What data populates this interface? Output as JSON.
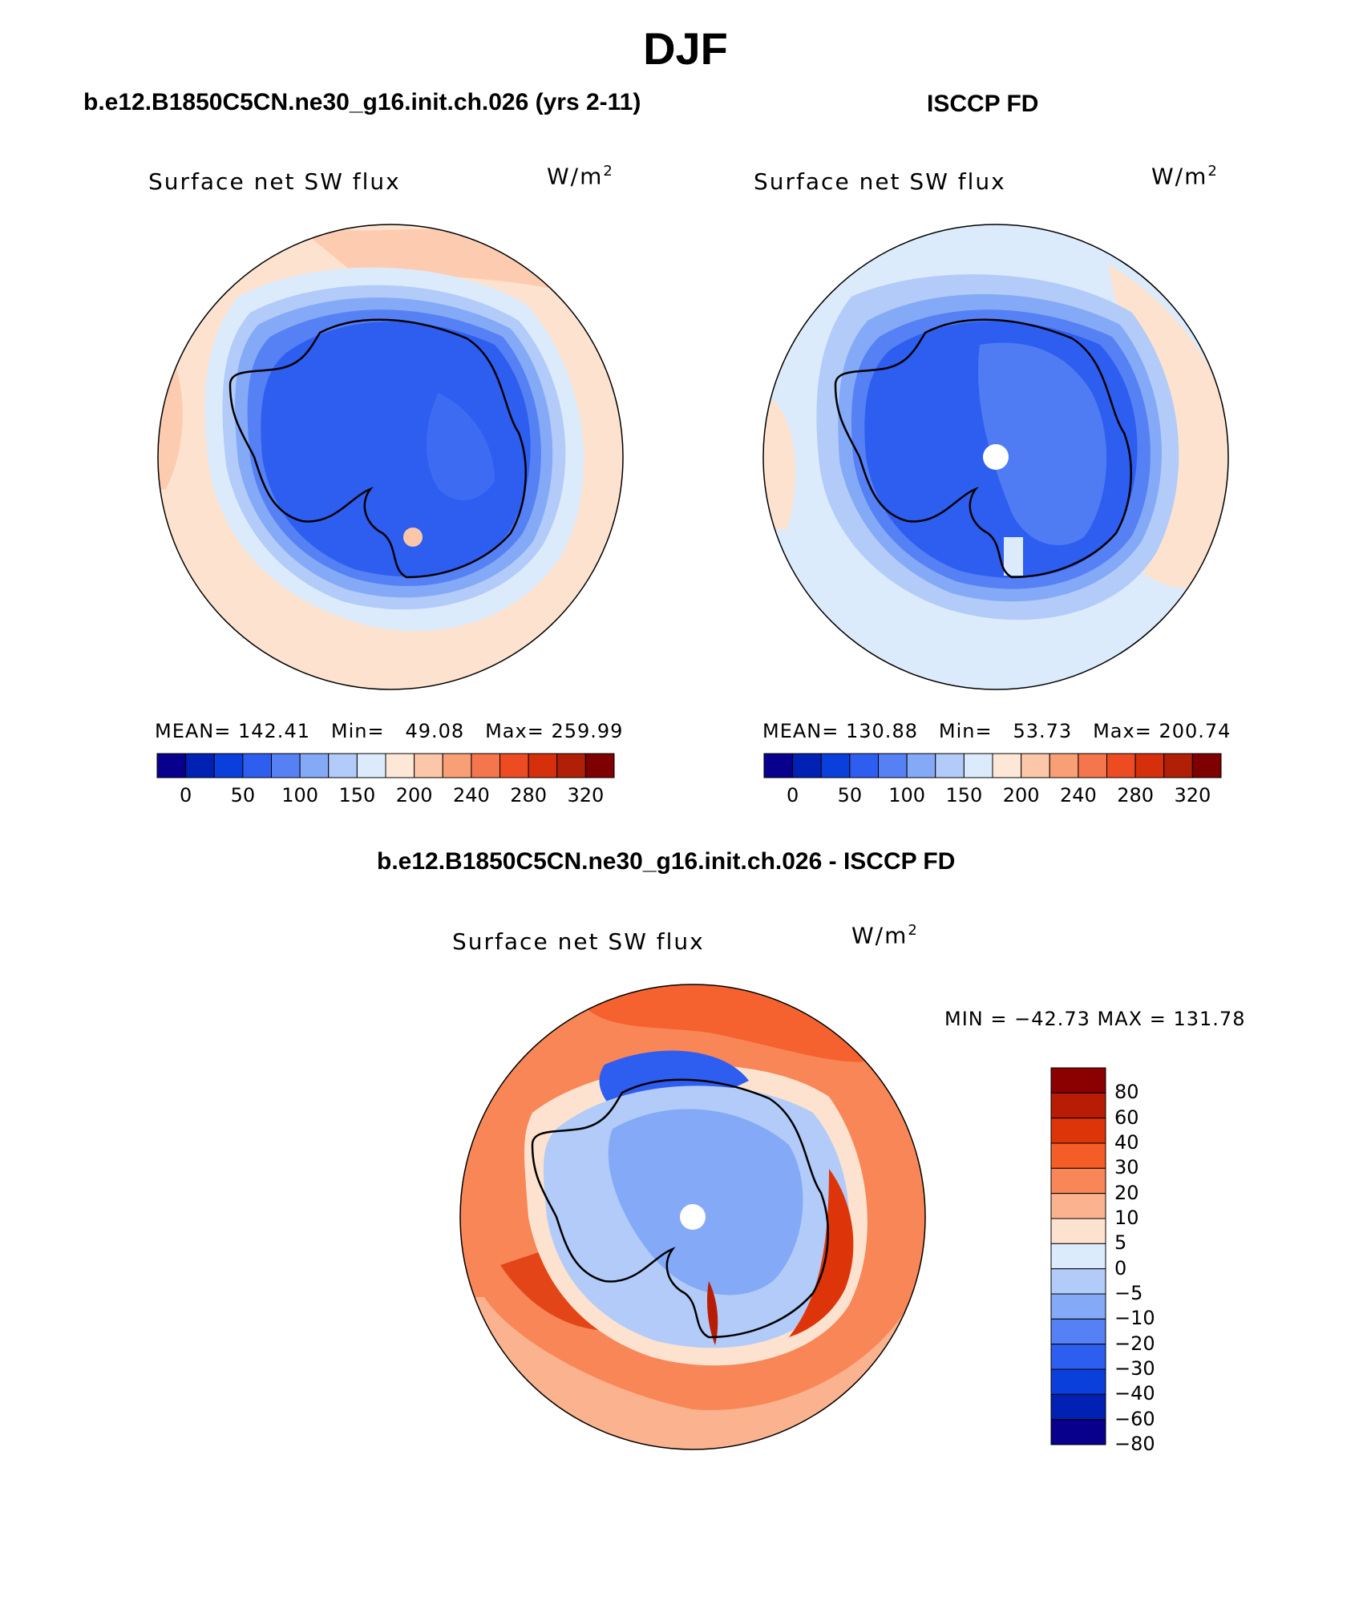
{
  "title": "DJF",
  "panels": [
    {
      "case": "b.e12.B1850C5CN.ne30_g16.init.ch.026 (yrs 2-11)",
      "variable": "Surface net SW flux",
      "units_base": "W/m",
      "units_exp": "2",
      "stats": {
        "mean_label": "MEAN=",
        "mean": "142.41",
        "min_label": "Min=",
        "min": "49.08",
        "max_label": "Max=",
        "max": "259.99"
      }
    },
    {
      "case": "ISCCP FD",
      "variable": "Surface net SW flux",
      "units_base": "W/m",
      "units_exp": "2",
      "stats": {
        "mean_label": "MEAN=",
        "mean": "130.88",
        "min_label": "Min=",
        "min": "53.73",
        "max_label": "Max=",
        "max": "200.74"
      }
    }
  ],
  "diff_panel": {
    "case": "b.e12.B1850C5CN.ne30_g16.init.ch.026 - ISCCP FD",
    "variable": "Surface net SW flux",
    "units_base": "W/m",
    "units_exp": "2",
    "minmax": "MIN = −42.73 MAX = 131.78"
  },
  "colorbar_main": {
    "colors": [
      "#08008c",
      "#0021b4",
      "#0a3fdc",
      "#2e5ef0",
      "#5581f4",
      "#84a9f6",
      "#b2cbf8",
      "#dcebfc",
      "#fde8d8",
      "#fcc6a8",
      "#f99f76",
      "#f5764c",
      "#ed4c23",
      "#d62f0c",
      "#b01f06",
      "#7f0000"
    ],
    "tick_labels": [
      "0",
      "50",
      "100",
      "150",
      "200",
      "240",
      "280",
      "320"
    ]
  },
  "colorbar_diff": {
    "colors": [
      "#8b0000",
      "#b81c04",
      "#dd3509",
      "#f45c28",
      "#f98656",
      "#fbb28e",
      "#fde3cf",
      "#dcebfc",
      "#b2cbf8",
      "#84a9f6",
      "#5581f4",
      "#2e5ef0",
      "#0a3fdc",
      "#0021b4",
      "#08008c"
    ],
    "tick_labels": [
      "80",
      "60",
      "40",
      "30",
      "20",
      "10",
      "5",
      "0",
      "−5",
      "−10",
      "−20",
      "−30",
      "−40",
      "−60",
      "−80"
    ]
  }
}
